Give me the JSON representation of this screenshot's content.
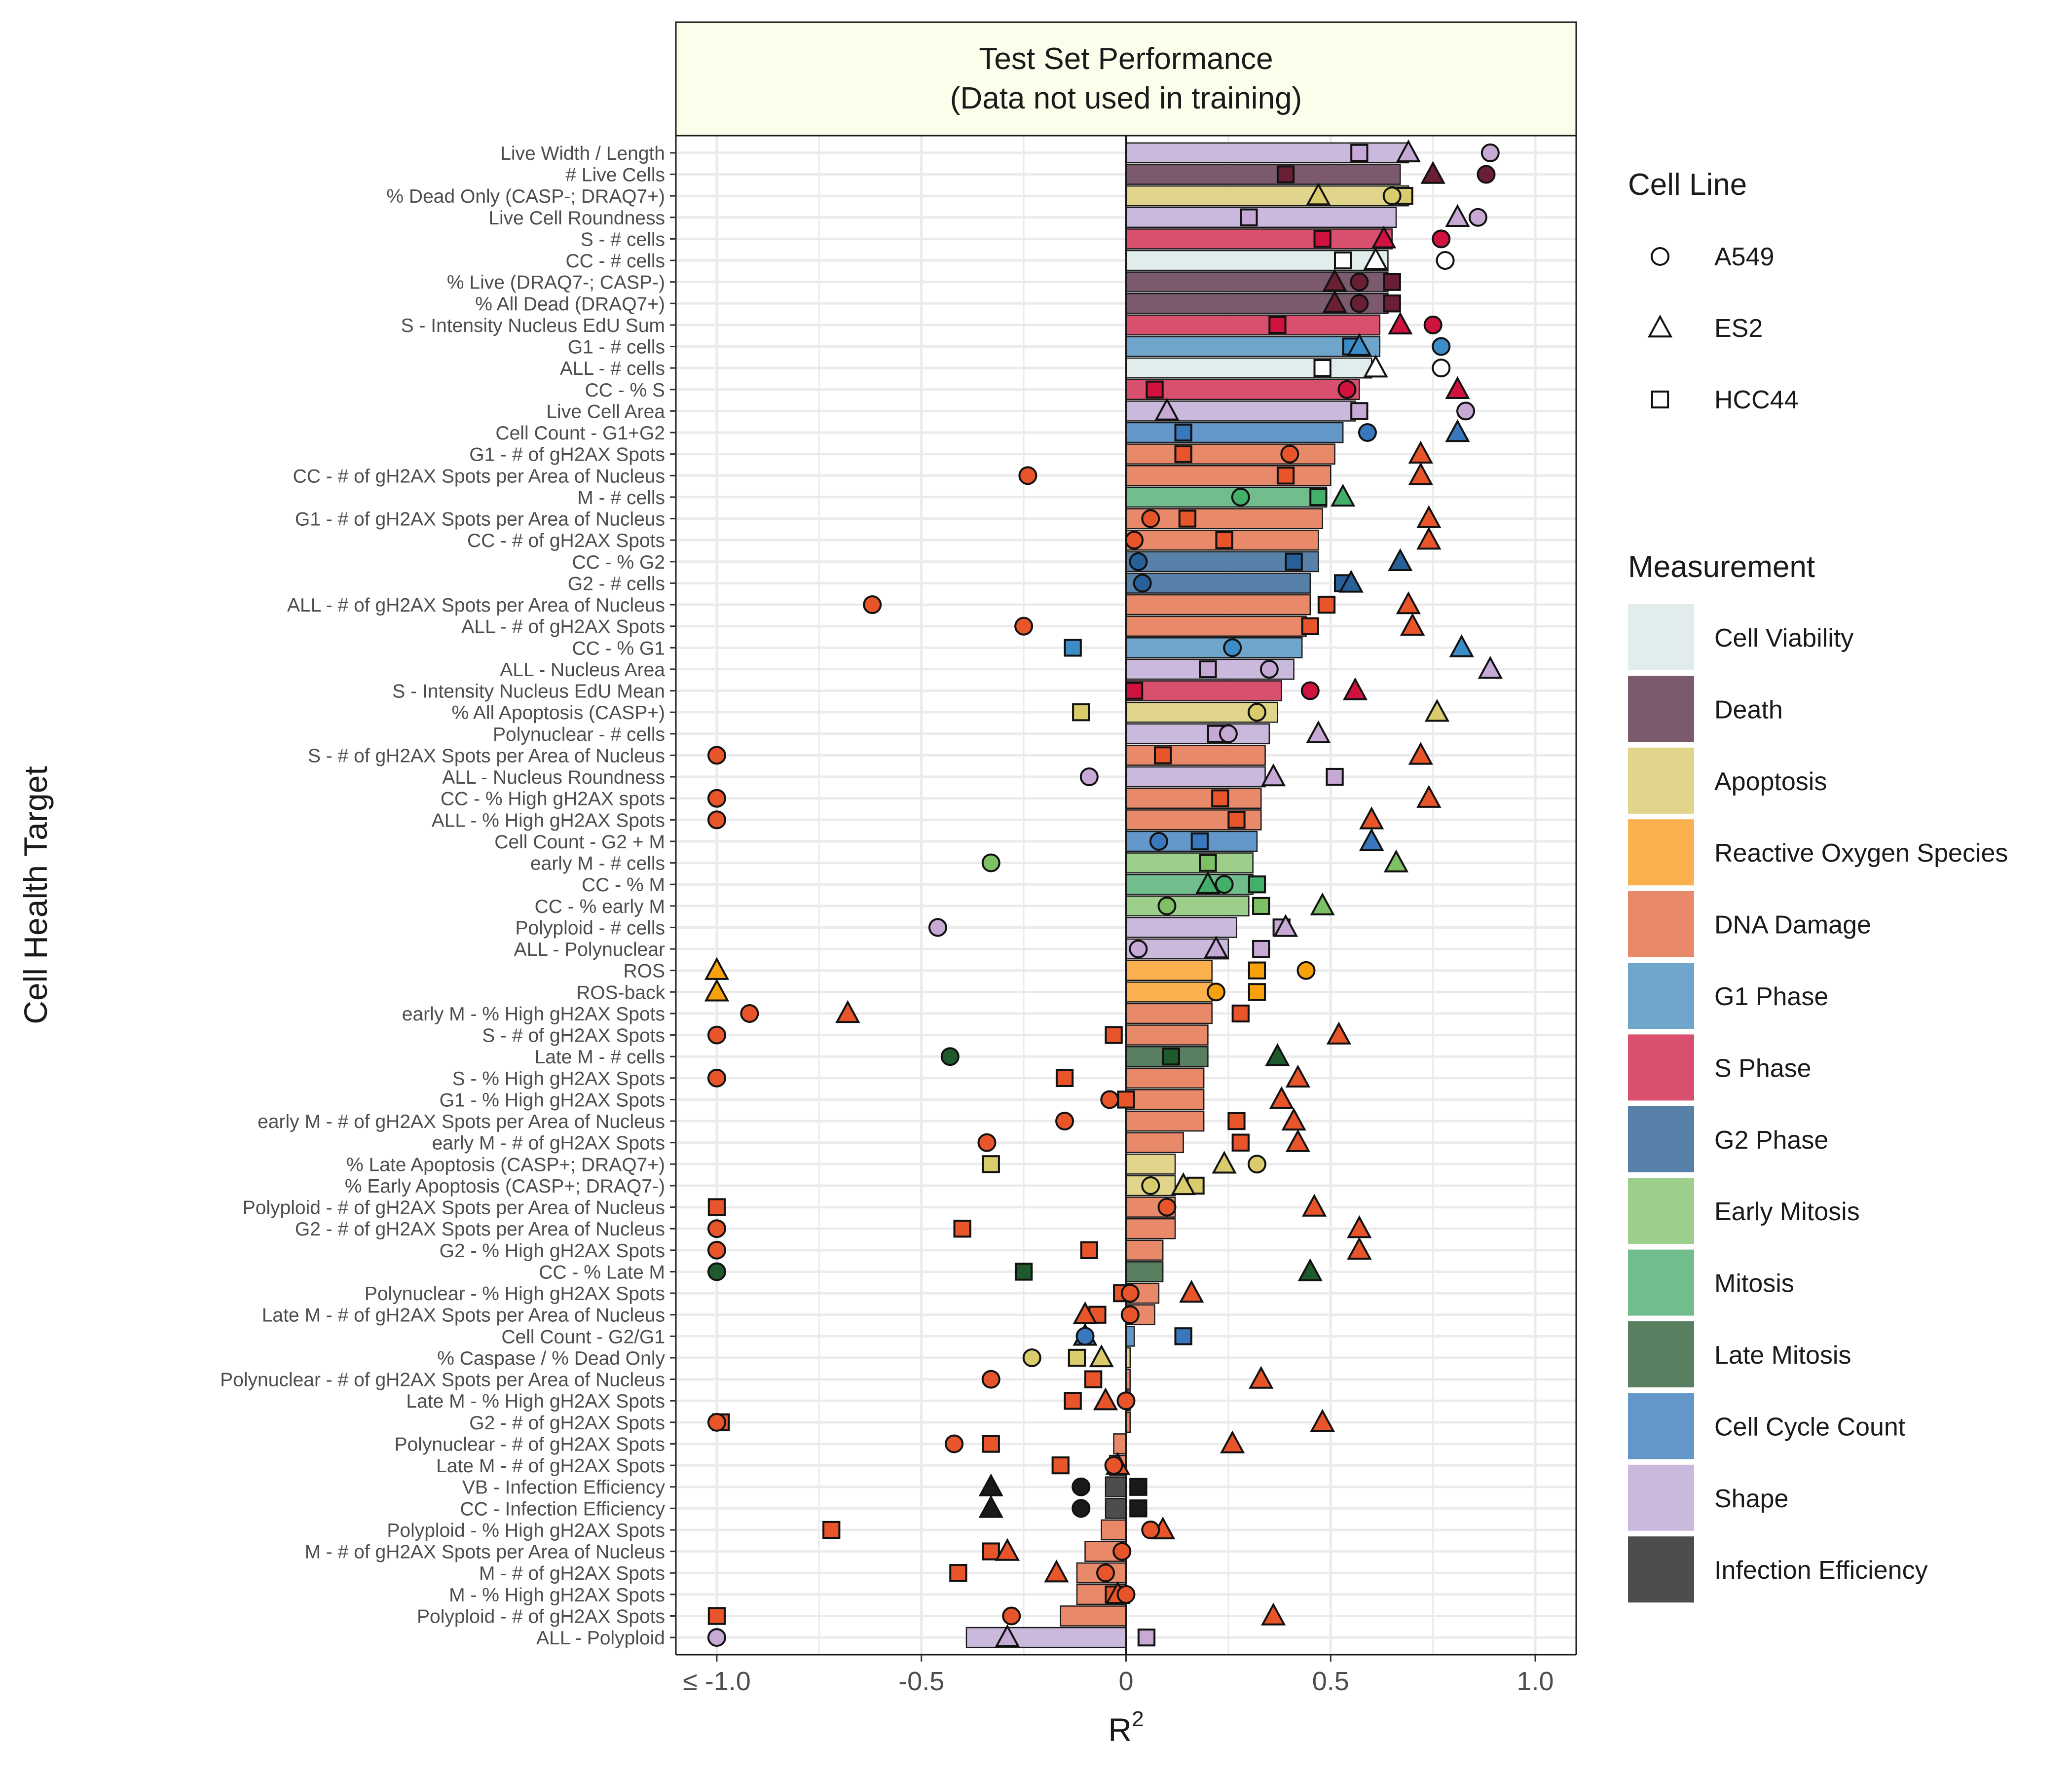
{
  "chart_data": {
    "type": "bar",
    "title_line1": "Test Set Performance",
    "title_line2": "(Data not used in training)",
    "xlabel": "R",
    "xlabel_superscript": "2",
    "ylabel": "Cell Health Target",
    "xlim": [
      -1.1,
      1.1
    ],
    "x_ticks": [
      -1.0,
      -0.5,
      0,
      0.5,
      1.0
    ],
    "x_tick_labels": [
      "≤ -1.0",
      "-0.5",
      "0",
      "0.5",
      "1.0"
    ],
    "grid": true,
    "legend_position": "right",
    "cell_line_legend": {
      "title": "Cell Line",
      "items": [
        {
          "label": "A549",
          "shape": "circle"
        },
        {
          "label": "ES2",
          "shape": "triangle"
        },
        {
          "label": "HCC44",
          "shape": "square"
        }
      ]
    },
    "measurement_legend": {
      "title": "Measurement",
      "items": [
        {
          "label": "Cell Viability",
          "color": "#e1ecec"
        },
        {
          "label": "Death",
          "color": "#7a5a6c"
        },
        {
          "label": "Apoptosis",
          "color": "#e1d58c"
        },
        {
          "label": "Reactive Oxygen Species",
          "color": "#fbb14f"
        },
        {
          "label": "DNA Damage",
          "color": "#e8896a"
        },
        {
          "label": "G1 Phase",
          "color": "#6fa5cb"
        },
        {
          "label": "S Phase",
          "color": "#d94f6e"
        },
        {
          "label": "G2 Phase",
          "color": "#5781a8"
        },
        {
          "label": "Early Mitosis",
          "color": "#9ccf8c"
        },
        {
          "label": "Mitosis",
          "color": "#72bd8e"
        },
        {
          "label": "Late Mitosis",
          "color": "#5a7f60"
        },
        {
          "label": "Cell Cycle Count",
          "color": "#6397c9"
        },
        {
          "label": "Shape",
          "color": "#cbb9dd"
        },
        {
          "label": "Infection Efficiency",
          "color": "#4d4d4d"
        }
      ]
    },
    "cell_line_colors": {
      "Cell Viability": "#ffffff",
      "Death": "#6b1f35",
      "Apoptosis": "#d8cc6c",
      "Reactive Oxygen Species": "#f7a10d",
      "DNA Damage": "#e8552a",
      "G1 Phase": "#3c8cc7",
      "S Phase": "#d0123f",
      "G2 Phase": "#28609a",
      "Early Mitosis": "#7ec165",
      "Mitosis": "#44ae6b",
      "Late Mitosis": "#1e5a2b",
      "Cell Cycle Count": "#3a78bd",
      "Shape": "#c7a9d6",
      "Infection Efficiency": "#1a1a1a"
    },
    "targets": [
      {
        "label": "Live Width / Length",
        "m": "Shape",
        "bar": 0.69,
        "a": 0.89,
        "e": 0.69,
        "h": 0.57
      },
      {
        "label": "# Live Cells",
        "m": "Death",
        "bar": 0.67,
        "a": 0.88,
        "e": 0.75,
        "h": 0.39
      },
      {
        "label": "% Dead Only (CASP-; DRAQ7+)",
        "m": "Apoptosis",
        "bar": 0.69,
        "a": 0.65,
        "e": 0.47,
        "h": 0.68
      },
      {
        "label": "Live Cell Roundness",
        "m": "Shape",
        "bar": 0.66,
        "a": 0.86,
        "e": 0.81,
        "h": 0.3
      },
      {
        "label": "S - # cells",
        "m": "S Phase",
        "bar": 0.65,
        "a": 0.77,
        "e": 0.63,
        "h": 0.48
      },
      {
        "label": "CC - # cells",
        "m": "Cell Viability",
        "bar": 0.64,
        "a": 0.78,
        "e": 0.61,
        "h": 0.53
      },
      {
        "label": "% Live (DRAQ7-; CASP-)",
        "m": "Death",
        "bar": 0.64,
        "a": 0.57,
        "e": 0.51,
        "h": 0.65
      },
      {
        "label": "% All Dead (DRAQ7+)",
        "m": "Death",
        "bar": 0.64,
        "a": 0.57,
        "e": 0.51,
        "h": 0.65
      },
      {
        "label": "S - Intensity Nucleus EdU Sum",
        "m": "S Phase",
        "bar": 0.62,
        "a": 0.75,
        "e": 0.67,
        "h": 0.37
      },
      {
        "label": "G1 - # cells",
        "m": "G1 Phase",
        "bar": 0.62,
        "a": 0.77,
        "e": 0.57,
        "h": 0.55
      },
      {
        "label": "ALL - # cells",
        "m": "Cell Viability",
        "bar": 0.6,
        "a": 0.77,
        "e": 0.61,
        "h": 0.48
      },
      {
        "label": "CC - % S",
        "m": "S Phase",
        "bar": 0.57,
        "a": 0.54,
        "e": 0.81,
        "h": 0.07
      },
      {
        "label": "Live Cell Area",
        "m": "Shape",
        "bar": 0.56,
        "a": 0.83,
        "e": 0.1,
        "h": 0.57
      },
      {
        "label": "Cell Count - G1+G2",
        "m": "Cell Cycle Count",
        "bar": 0.53,
        "a": 0.59,
        "e": 0.81,
        "h": 0.14
      },
      {
        "label": "G1 - # of gH2AX Spots",
        "m": "DNA Damage",
        "bar": 0.51,
        "a": 0.4,
        "e": 0.72,
        "h": 0.14
      },
      {
        "label": "CC - # of gH2AX Spots per Area of Nucleus",
        "m": "DNA Damage",
        "bar": 0.5,
        "a": -0.24,
        "e": 0.72,
        "h": 0.39
      },
      {
        "label": "M - # cells",
        "m": "Mitosis",
        "bar": 0.49,
        "a": 0.28,
        "e": 0.53,
        "h": 0.47
      },
      {
        "label": "G1 - # of gH2AX Spots per Area of Nucleus",
        "m": "DNA Damage",
        "bar": 0.48,
        "a": 0.06,
        "e": 0.74,
        "h": 0.15
      },
      {
        "label": "CC - # of gH2AX Spots",
        "m": "DNA Damage",
        "bar": 0.47,
        "a": 0.02,
        "e": 0.74,
        "h": 0.24
      },
      {
        "label": "CC - % G2",
        "m": "G2 Phase",
        "bar": 0.47,
        "a": 0.03,
        "e": 0.67,
        "h": 0.41
      },
      {
        "label": "G2 - # cells",
        "m": "G2 Phase",
        "bar": 0.45,
        "a": 0.04,
        "e": 0.55,
        "h": 0.53
      },
      {
        "label": "ALL - # of gH2AX Spots per Area of Nucleus",
        "m": "DNA Damage",
        "bar": 0.45,
        "a": -0.62,
        "e": 0.69,
        "h": 0.49
      },
      {
        "label": "ALL - # of gH2AX Spots",
        "m": "DNA Damage",
        "bar": 0.44,
        "a": -0.25,
        "e": 0.7,
        "h": 0.45
      },
      {
        "label": "CC - % G1",
        "m": "G1 Phase",
        "bar": 0.43,
        "a": 0.26,
        "e": 0.82,
        "h": -0.13
      },
      {
        "label": "ALL - Nucleus Area",
        "m": "Shape",
        "bar": 0.41,
        "a": 0.35,
        "e": 0.89,
        "h": 0.2
      },
      {
        "label": "S - Intensity Nucleus EdU Mean",
        "m": "S Phase",
        "bar": 0.38,
        "a": 0.45,
        "e": 0.56,
        "h": 0.02
      },
      {
        "label": "% All Apoptosis (CASP+)",
        "m": "Apoptosis",
        "bar": 0.37,
        "a": 0.32,
        "e": 0.76,
        "h": -0.11
      },
      {
        "label": "Polynuclear - # cells",
        "m": "Shape",
        "bar": 0.35,
        "a": 0.25,
        "e": 0.47,
        "h": 0.22
      },
      {
        "label": "S - # of gH2AX Spots per Area of Nucleus",
        "m": "DNA Damage",
        "bar": 0.34,
        "a": -1.0,
        "e": 0.72,
        "h": 0.09
      },
      {
        "label": "ALL - Nucleus Roundness",
        "m": "Shape",
        "bar": 0.34,
        "a": -0.09,
        "e": 0.36,
        "h": 0.51
      },
      {
        "label": "CC - % High gH2AX spots",
        "m": "DNA Damage",
        "bar": 0.33,
        "a": -1.0,
        "e": 0.74,
        "h": 0.23
      },
      {
        "label": "ALL - % High gH2AX Spots",
        "m": "DNA Damage",
        "bar": 0.33,
        "a": -1.0,
        "e": 0.6,
        "h": 0.27
      },
      {
        "label": "Cell Count - G2 + M",
        "m": "Cell Cycle Count",
        "bar": 0.32,
        "a": 0.08,
        "e": 0.6,
        "h": 0.18
      },
      {
        "label": "early M - # cells",
        "m": "Early Mitosis",
        "bar": 0.31,
        "a": -0.33,
        "e": 0.66,
        "h": 0.2
      },
      {
        "label": "CC - % M",
        "m": "Mitosis",
        "bar": 0.31,
        "a": 0.24,
        "e": 0.2,
        "h": 0.32
      },
      {
        "label": "CC - % early M",
        "m": "Early Mitosis",
        "bar": 0.3,
        "a": 0.1,
        "e": 0.48,
        "h": 0.33
      },
      {
        "label": "Polyploid - # cells",
        "m": "Shape",
        "bar": 0.27,
        "a": -0.46,
        "e": 0.39,
        "h": 0.38
      },
      {
        "label": "ALL - Polynuclear",
        "m": "Shape",
        "bar": 0.25,
        "a": 0.03,
        "e": 0.22,
        "h": 0.33
      },
      {
        "label": "ROS",
        "m": "Reactive Oxygen Species",
        "bar": 0.21,
        "a": 0.44,
        "e": -1.0,
        "h": 0.32
      },
      {
        "label": "ROS-back",
        "m": "Reactive Oxygen Species",
        "bar": 0.21,
        "a": 0.22,
        "e": -1.0,
        "h": 0.32
      },
      {
        "label": "early M - % High gH2AX Spots",
        "m": "DNA Damage",
        "bar": 0.21,
        "a": -0.92,
        "e": -0.68,
        "h": 0.28
      },
      {
        "label": "S - # of gH2AX Spots",
        "m": "DNA Damage",
        "bar": 0.2,
        "a": -1.0,
        "e": 0.52,
        "h": -0.03
      },
      {
        "label": "Late M - # cells",
        "m": "Late Mitosis",
        "bar": 0.2,
        "a": -0.43,
        "e": 0.37,
        "h": 0.11
      },
      {
        "label": "S - % High gH2AX Spots",
        "m": "DNA Damage",
        "bar": 0.19,
        "a": -1.0,
        "e": 0.42,
        "h": -0.15
      },
      {
        "label": "G1 - % High gH2AX Spots",
        "m": "DNA Damage",
        "bar": 0.19,
        "a": -0.04,
        "e": 0.38,
        "h": 0.0
      },
      {
        "label": "early M - # of gH2AX Spots per Area of Nucleus",
        "m": "DNA Damage",
        "bar": 0.19,
        "a": -0.15,
        "e": 0.41,
        "h": 0.27
      },
      {
        "label": "early M - # of gH2AX Spots",
        "m": "DNA Damage",
        "bar": 0.14,
        "a": -0.34,
        "e": 0.42,
        "h": 0.28
      },
      {
        "label": "% Late Apoptosis (CASP+; DRAQ7+)",
        "m": "Apoptosis",
        "bar": 0.12,
        "a": 0.32,
        "e": 0.24,
        "h": -0.33
      },
      {
        "label": "% Early Apoptosis (CASP+; DRAQ7-)",
        "m": "Apoptosis",
        "bar": 0.12,
        "a": 0.06,
        "e": 0.14,
        "h": 0.17
      },
      {
        "label": "Polyploid - # of gH2AX Spots per Area of Nucleus",
        "m": "DNA Damage",
        "bar": 0.12,
        "a": 0.1,
        "e": 0.46,
        "h": -1.0
      },
      {
        "label": "G2 - # of gH2AX Spots per Area of Nucleus",
        "m": "DNA Damage",
        "bar": 0.12,
        "a": -1.0,
        "e": 0.57,
        "h": -0.4
      },
      {
        "label": "G2 - % High gH2AX Spots",
        "m": "DNA Damage",
        "bar": 0.09,
        "a": -1.0,
        "e": 0.57,
        "h": -0.09
      },
      {
        "label": "CC - % Late M",
        "m": "Late Mitosis",
        "bar": 0.09,
        "a": -1.0,
        "e": 0.45,
        "h": -0.25
      },
      {
        "label": "Polynuclear - % High gH2AX Spots",
        "m": "DNA Damage",
        "bar": 0.08,
        "a": 0.01,
        "e": 0.16,
        "h": -0.01
      },
      {
        "label": "Late M - # of gH2AX Spots per Area of Nucleus",
        "m": "DNA Damage",
        "bar": 0.07,
        "a": 0.01,
        "e": -0.1,
        "h": -0.07
      },
      {
        "label": "Cell Count - G2/G1",
        "m": "Cell Cycle Count",
        "bar": 0.02,
        "a": -0.1,
        "e": -0.1,
        "h": 0.14
      },
      {
        "label": "% Caspase / % Dead Only",
        "m": "Apoptosis",
        "bar": 0.01,
        "a": -0.23,
        "e": -0.06,
        "h": -0.12
      },
      {
        "label": "Polynuclear - # of gH2AX Spots per Area of Nucleus",
        "m": "DNA Damage",
        "bar": 0.01,
        "a": -0.33,
        "e": 0.33,
        "h": -0.08
      },
      {
        "label": "Late M - % High gH2AX Spots",
        "m": "DNA Damage",
        "bar": 0.01,
        "a": 0.0,
        "e": -0.05,
        "h": -0.13
      },
      {
        "label": "G2 - # of gH2AX Spots",
        "m": "DNA Damage",
        "bar": 0.01,
        "a": -1.0,
        "e": 0.48,
        "h": -0.99
      },
      {
        "label": "Polynuclear - # of gH2AX Spots",
        "m": "DNA Damage",
        "bar": -0.03,
        "a": -0.42,
        "e": 0.26,
        "h": -0.33
      },
      {
        "label": "Late M - # of gH2AX Spots",
        "m": "DNA Damage",
        "bar": -0.04,
        "a": -0.03,
        "e": -0.02,
        "h": -0.16
      },
      {
        "label": "VB - Infection Efficiency",
        "m": "Infection Efficiency",
        "bar": -0.05,
        "a": -0.11,
        "e": -0.33,
        "h": 0.03
      },
      {
        "label": "CC - Infection Efficiency",
        "m": "Infection Efficiency",
        "bar": -0.05,
        "a": -0.11,
        "e": -0.33,
        "h": 0.03
      },
      {
        "label": "Polyploid - % High gH2AX Spots",
        "m": "DNA Damage",
        "bar": -0.06,
        "a": 0.06,
        "e": 0.09,
        "h": -0.72
      },
      {
        "label": "M - # of gH2AX Spots per Area of Nucleus",
        "m": "DNA Damage",
        "bar": -0.1,
        "a": -0.01,
        "e": -0.29,
        "h": -0.33
      },
      {
        "label": "M - # of gH2AX Spots",
        "m": "DNA Damage",
        "bar": -0.12,
        "a": -0.05,
        "e": -0.17,
        "h": -0.41
      },
      {
        "label": "M - % High gH2AX Spots",
        "m": "DNA Damage",
        "bar": -0.12,
        "a": 0.0,
        "e": -0.02,
        "h": -0.03
      },
      {
        "label": "Polyploid - # of gH2AX Spots",
        "m": "DNA Damage",
        "bar": -0.16,
        "a": -0.28,
        "e": 0.36,
        "h": -1.0
      },
      {
        "label": "ALL - Polyploid",
        "m": "Shape",
        "bar": -0.39,
        "a": -1.0,
        "e": -0.29,
        "h": 0.05
      }
    ]
  }
}
